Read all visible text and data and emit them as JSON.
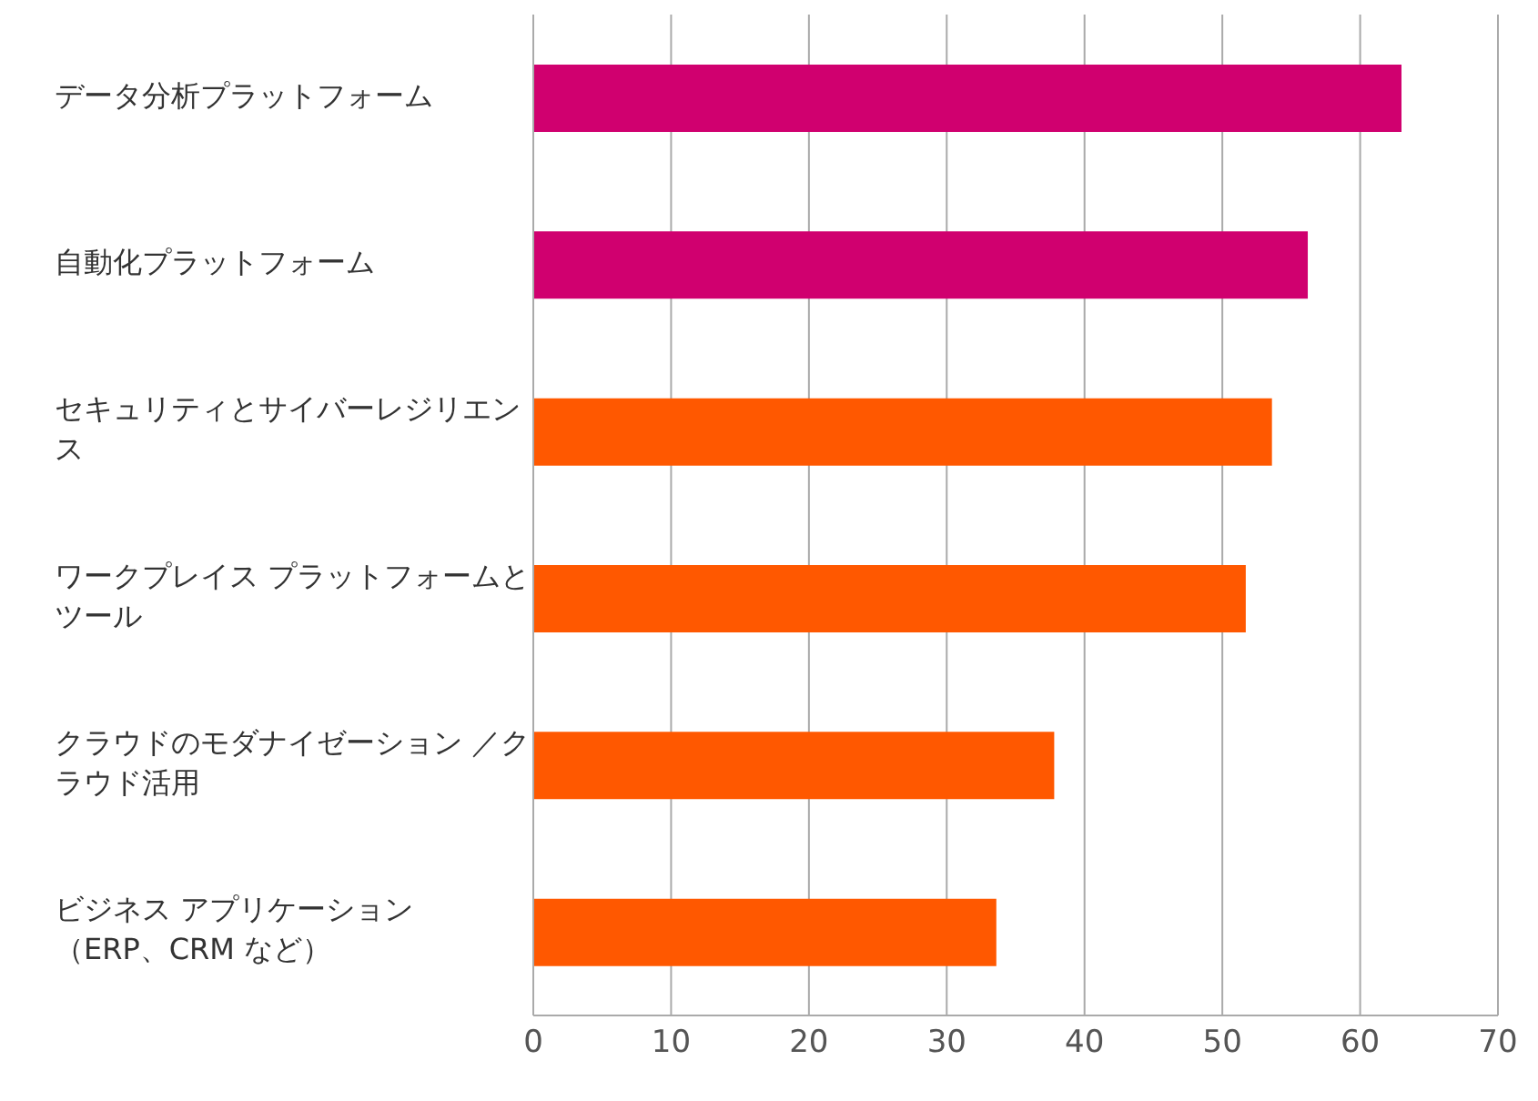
{
  "chart_data": {
    "type": "bar",
    "orientation": "horizontal",
    "categories": [
      "データ分析プラットフォーム",
      "自動化プラットフォーム",
      "セキュリティとサイバーレジリエンス",
      "ワークプレイス プラットフォームとツール",
      "クラウドのモダナイゼーション ／クラウド活用",
      "ビジネス アプリケーション（ERP、CRM など）"
    ],
    "values": [
      63,
      56.2,
      53.6,
      51.7,
      37.8,
      33.6
    ],
    "colors": [
      "#d0006f",
      "#d0006f",
      "#ff5800",
      "#ff5800",
      "#ff5800",
      "#ff5800"
    ],
    "xlim": [
      0,
      70
    ],
    "xticks": [
      0,
      10,
      20,
      30,
      40,
      50,
      60,
      70
    ],
    "grid": "x"
  }
}
